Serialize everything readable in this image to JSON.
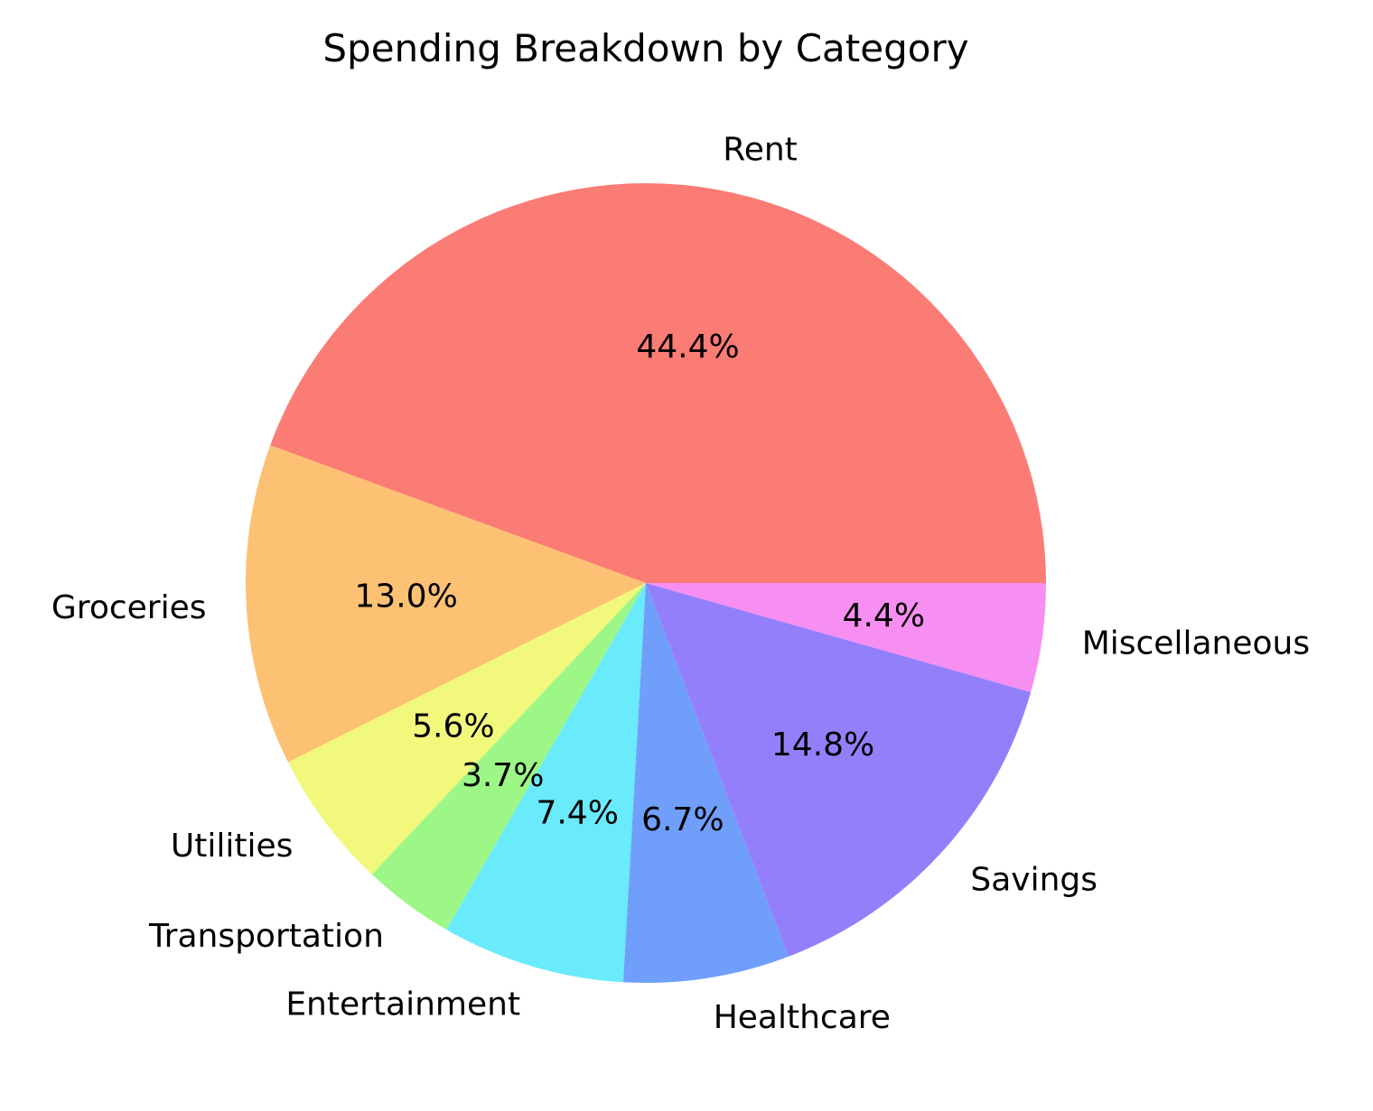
{
  "chart_data": {
    "type": "pie",
    "title": "Spending Breakdown by Category",
    "start_angle_deg": 0,
    "direction": "counterclockwise",
    "categories": [
      "Rent",
      "Groceries",
      "Utilities",
      "Transportation",
      "Entertainment",
      "Healthcare",
      "Savings",
      "Miscellaneous"
    ],
    "values": [
      44.4,
      13.0,
      5.6,
      3.7,
      7.4,
      6.7,
      14.8,
      4.4
    ],
    "pct_labels": [
      "44.4%",
      "13.0%",
      "5.6%",
      "3.7%",
      "7.4%",
      "6.7%",
      "14.8%",
      "4.4%"
    ],
    "colors": [
      "#fb7b75",
      "#fdc173",
      "#f1f87c",
      "#9cf786",
      "#6aebfb",
      "#6f9ffb",
      "#947ffb",
      "#f78ef1"
    ]
  }
}
